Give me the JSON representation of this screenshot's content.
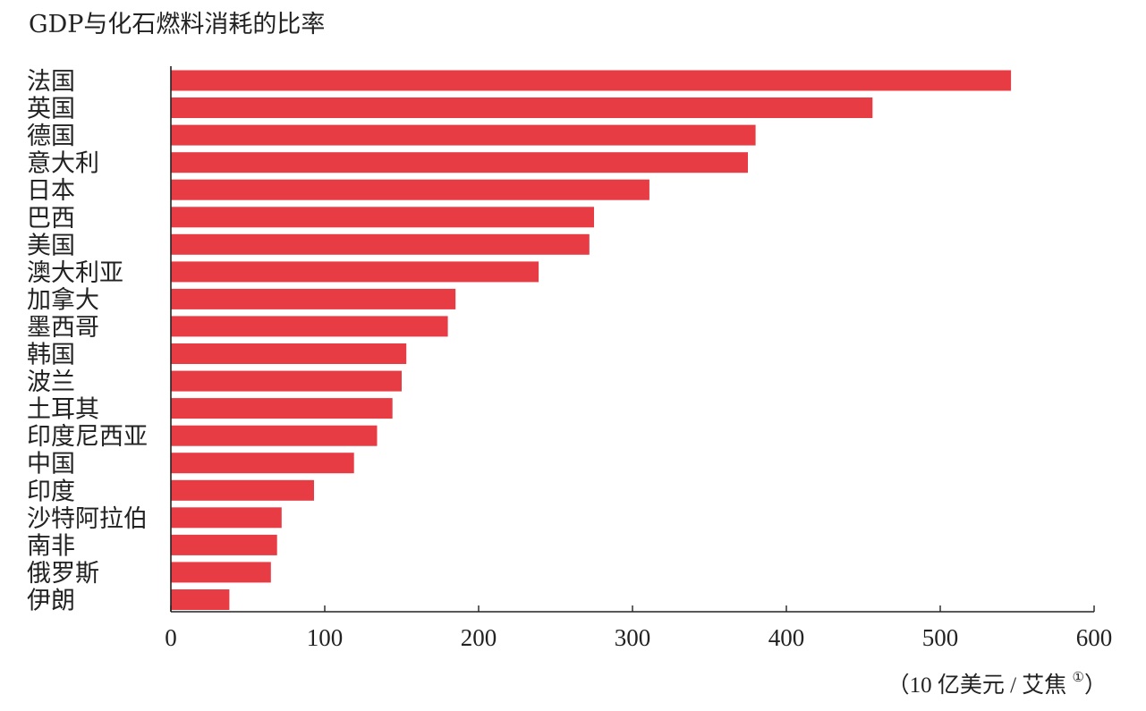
{
  "chart_data": {
    "type": "bar",
    "orientation": "horizontal",
    "title": "GDP与化石燃料消耗的比率",
    "categories": [
      "法国",
      "英国",
      "德国",
      "意大利",
      "日本",
      "巴西",
      "美国",
      "澳大利亚",
      "加拿大",
      "墨西哥",
      "韩国",
      "波兰",
      "土耳其",
      "印度尼西亚",
      "中国",
      "印度",
      "沙特阿拉伯",
      "南非",
      "俄罗斯",
      "伊朗"
    ],
    "values": [
      546,
      456,
      380,
      375,
      311,
      275,
      272,
      239,
      185,
      180,
      153,
      150,
      144,
      134,
      119,
      93,
      72,
      69,
      65,
      38
    ],
    "xlim": [
      0,
      600
    ],
    "xticks": [
      "0",
      "100",
      "200",
      "300",
      "400",
      "500",
      "600"
    ],
    "xlabel": "（10 亿美元 / 艾焦",
    "xlabel_note": "①",
    "ylabel": "",
    "grid": false,
    "bar_color": "#e83c45"
  }
}
